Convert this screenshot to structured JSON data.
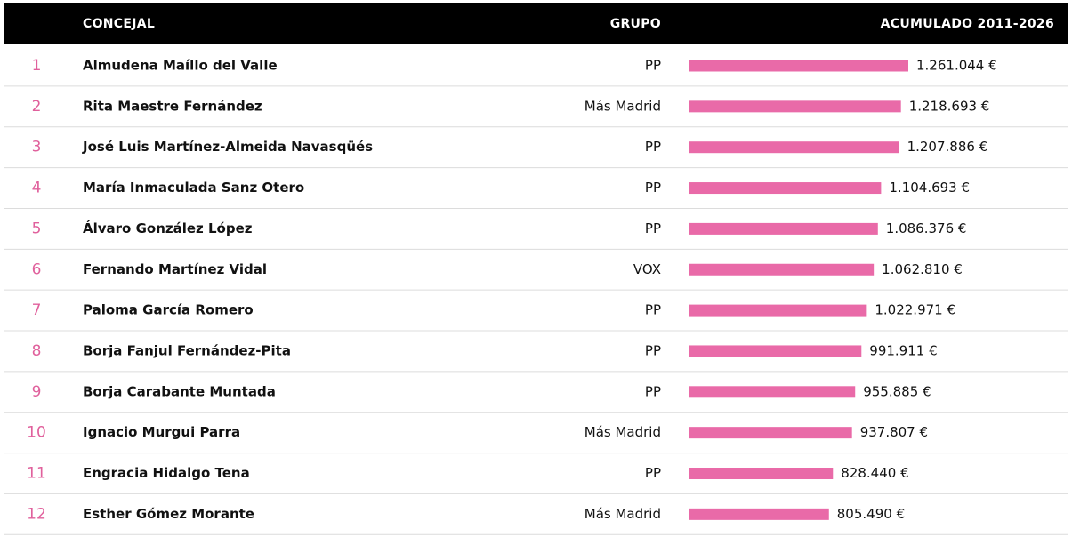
{
  "table": {
    "header": [
      "CONCEJAL",
      "GRUPO",
      "ACUMULADO 2011-2026"
    ],
    "bar_color": "#e96aa8",
    "rows": [
      {
        "rank": 1,
        "name": "Almudena Maíllo del Valle",
        "group": "PP",
        "value": 1261044,
        "label": "1.261.044 €"
      },
      {
        "rank": 2,
        "name": "Rita Maestre Fernández",
        "group": "Más Madrid",
        "value": 1218693,
        "label": "1.218.693 €"
      },
      {
        "rank": 3,
        "name": "José Luis Martínez-Almeida Navasqüés",
        "group": "PP",
        "value": 1207886,
        "label": "1.207.886 €"
      },
      {
        "rank": 4,
        "name": "María Inmaculada Sanz Otero",
        "group": "PP",
        "value": 1104693,
        "label": "1.104.693 €"
      },
      {
        "rank": 5,
        "name": "Álvaro González López",
        "group": "PP",
        "value": 1086376,
        "label": "1.086.376 €"
      },
      {
        "rank": 6,
        "name": "Fernando Martínez Vidal",
        "group": "VOX",
        "value": 1062810,
        "label": "1.062.810 €"
      },
      {
        "rank": 7,
        "name": "Paloma García Romero",
        "group": "PP",
        "value": 1022971,
        "label": "1.022.971 €"
      },
      {
        "rank": 8,
        "name": "Borja Fanjul Fernández-Pita",
        "group": "PP",
        "value": 991911,
        "label": "991.911 €"
      },
      {
        "rank": 9,
        "name": "Borja Carabante Muntada",
        "group": "PP",
        "value": 955885,
        "label": "955.885 €"
      },
      {
        "rank": 10,
        "name": "Ignacio Murgui Parra",
        "group": "Más Madrid",
        "value": 937807,
        "label": "937.807 €"
      },
      {
        "rank": 11,
        "name": "Engracia Hidalgo Tena",
        "group": "PP",
        "value": 828440,
        "label": "828.440 €"
      },
      {
        "rank": 12,
        "name": "Esther Gómez Morante",
        "group": "Más Madrid",
        "value": 805490,
        "label": "805.490 €"
      }
    ]
  }
}
